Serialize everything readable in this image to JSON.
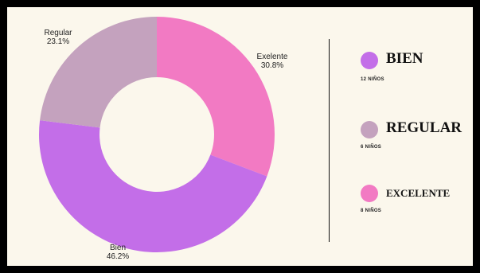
{
  "chart_data": {
    "type": "pie",
    "variant": "donut",
    "slices": [
      {
        "label": "Exelente",
        "value": 30.8,
        "display": "30.8%",
        "color": "#f27ac3"
      },
      {
        "label": "Bien",
        "value": 46.2,
        "display": "46.2%",
        "color": "#c36ee8"
      },
      {
        "label": "Regular",
        "value": 23.1,
        "display": "23.1%",
        "color": "#c4a2be"
      }
    ]
  },
  "legend": {
    "items": [
      {
        "title": "BIEN",
        "subtitle": "12 NIÑOS",
        "color": "#c36ee8",
        "icon": "circle-swatch"
      },
      {
        "title": "REGULAR",
        "subtitle": "6 NIÑOS",
        "color": "#c4a2be",
        "icon": "circle-swatch"
      },
      {
        "title": "EXCELENTE",
        "subtitle": "8 NIÑOS",
        "color": "#f27ac3",
        "icon": "circle-swatch"
      }
    ]
  },
  "colors": {
    "background": "#fbf7ec",
    "border": "#000000",
    "divider": "#111111"
  }
}
